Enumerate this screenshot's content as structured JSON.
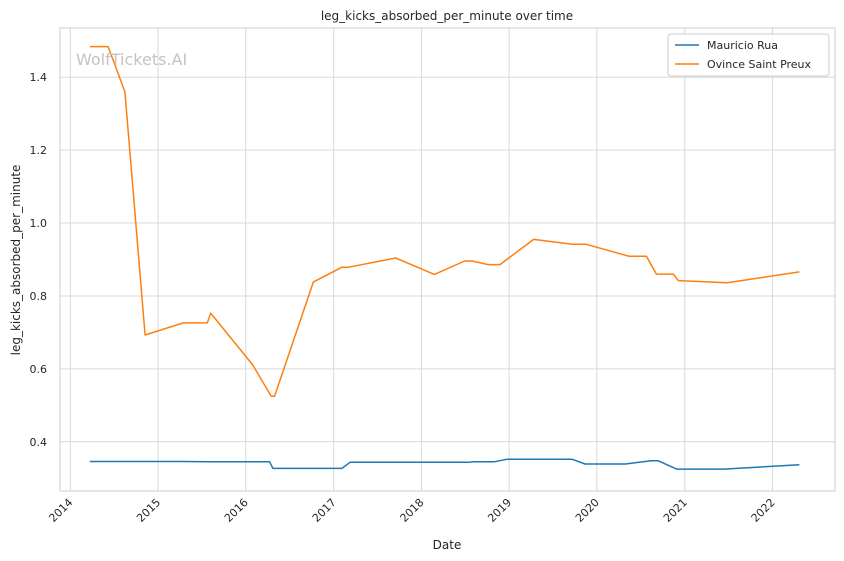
{
  "chart_data": {
    "type": "line",
    "title": "leg_kicks_absorbed_per_minute over time",
    "xlabel": "Date",
    "ylabel": "leg_kicks_absorbed_per_minute",
    "watermark": "WolfTickets.AI",
    "x_ticks": [
      "2014",
      "2015",
      "2016",
      "2017",
      "2018",
      "2019",
      "2020",
      "2021",
      "2022"
    ],
    "y_ticks": [
      "0.4",
      "0.6",
      "0.8",
      "1.0",
      "1.2",
      "1.4"
    ],
    "xlim": [
      "2013-11-19",
      "2022-09-18"
    ],
    "ylim": [
      0.265,
      1.535
    ],
    "grid": true,
    "legend_position": "top-right",
    "series": [
      {
        "name": "Mauricio Rua",
        "color": "#1f77b4",
        "points": [
          [
            "2014-03-23",
            0.346
          ],
          [
            "2015-04-16",
            0.346
          ],
          [
            "2015-07-31",
            0.345
          ],
          [
            "2016-04-09",
            0.345
          ],
          [
            "2016-04-23",
            0.327
          ],
          [
            "2017-02-04",
            0.327
          ],
          [
            "2017-03-11",
            0.344
          ],
          [
            "2018-07-22",
            0.344
          ],
          [
            "2018-07-30",
            0.345
          ],
          [
            "2018-10-31",
            0.345
          ],
          [
            "2018-12-22",
            0.352
          ],
          [
            "2019-09-21",
            0.352
          ],
          [
            "2019-11-13",
            0.339
          ],
          [
            "2020-04-30",
            0.339
          ],
          [
            "2020-08-14",
            0.348
          ],
          [
            "2020-09-12",
            0.348
          ],
          [
            "2020-11-28",
            0.325
          ],
          [
            "2021-06-12",
            0.325
          ],
          [
            "2022-04-23",
            0.337
          ]
        ]
      },
      {
        "name": "Ovince Saint Preux",
        "color": "#ff7f0e",
        "points": [
          [
            "2014-03-23",
            1.484
          ],
          [
            "2014-06-07",
            1.484
          ],
          [
            "2014-08-16",
            1.36
          ],
          [
            "2014-11-08",
            0.693
          ],
          [
            "2015-04-16",
            0.726
          ],
          [
            "2015-07-25",
            0.726
          ],
          [
            "2015-08-08",
            0.753
          ],
          [
            "2016-01-30",
            0.611
          ],
          [
            "2016-04-16",
            0.525
          ],
          [
            "2016-04-30",
            0.525
          ],
          [
            "2016-10-08",
            0.838
          ],
          [
            "2017-02-04",
            0.879
          ],
          [
            "2017-03-04",
            0.879
          ],
          [
            "2017-09-16",
            0.904
          ],
          [
            "2018-02-24",
            0.859
          ],
          [
            "2018-06-30",
            0.896
          ],
          [
            "2018-07-30",
            0.896
          ],
          [
            "2018-10-06",
            0.886
          ],
          [
            "2018-11-24",
            0.886
          ],
          [
            "2019-04-13",
            0.955
          ],
          [
            "2019-09-21",
            0.942
          ],
          [
            "2019-11-16",
            0.942
          ],
          [
            "2020-05-13",
            0.909
          ],
          [
            "2020-07-25",
            0.909
          ],
          [
            "2020-09-05",
            0.86
          ],
          [
            "2020-11-14",
            0.86
          ],
          [
            "2020-12-05",
            0.842
          ],
          [
            "2021-06-26",
            0.836
          ],
          [
            "2022-04-23",
            0.866
          ]
        ]
      }
    ]
  }
}
